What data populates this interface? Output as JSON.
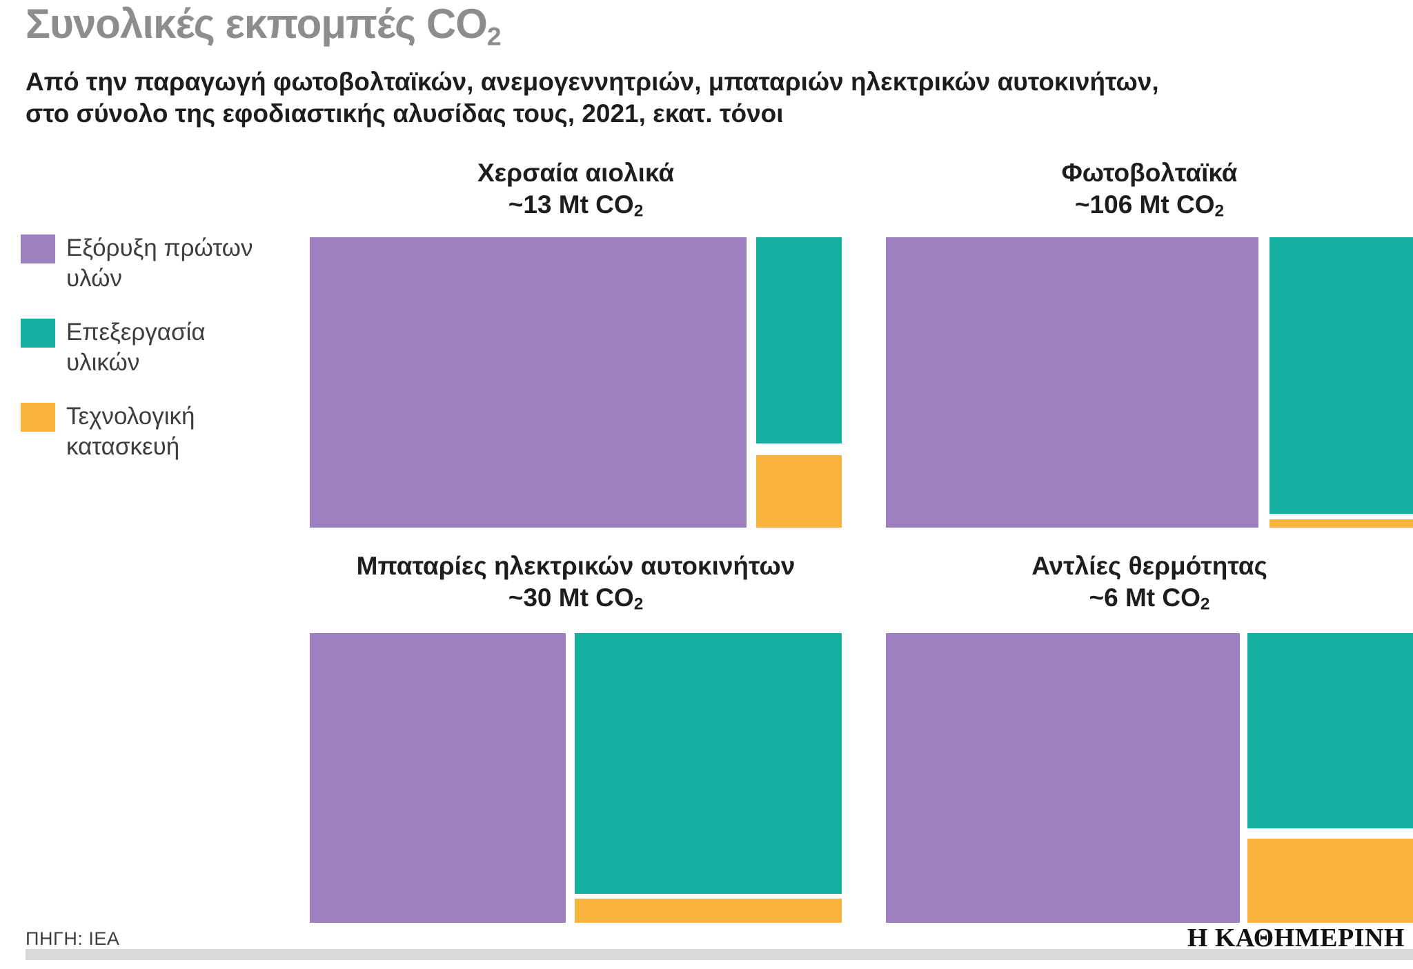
{
  "title": {
    "main": "Συνολικές εκπομπές CO",
    "sub": "2"
  },
  "subtitle": {
    "line1": "Από την παραγωγή φωτοβολταϊκών, ανεμογεννητριών, μπαταριών ηλεκτρικών αυτοκινήτων,",
    "line2": "στο σύνολο της εφοδιαστικής αλυσίδας τους, 2021, εκατ. τόνοι"
  },
  "colors": {
    "purple": "#9c7fbe",
    "teal": "#13b0a2",
    "orange": "#f9b43f",
    "title_gray": "#8d8d8d",
    "text_dark": "#1d1d1b",
    "footer_bar": "#d9d9d9"
  },
  "legend": {
    "items": [
      {
        "label": "Εξόρυξη πρώτων υλών",
        "color": "purple"
      },
      {
        "label": "Επεξεργασία υλικών",
        "color": "teal"
      },
      {
        "label": "Τεχνολογική κατασκευή",
        "color": "orange"
      }
    ]
  },
  "panels": [
    {
      "title": "Χερσαία αιολικά",
      "value_main": "~13 Mt CO",
      "value_sub": "2"
    },
    {
      "title": "Φωτοβολταϊκά",
      "value_main": "~106 Mt CO",
      "value_sub": "2"
    },
    {
      "title": "Μπαταρίες ηλεκτρικών αυτοκινήτων",
      "value_main": "~30 Mt CO",
      "value_sub": "2"
    },
    {
      "title": "Αντλίες θερμότητας",
      "value_main": "~6 Mt CO",
      "value_sub": "2"
    }
  ],
  "footer": {
    "source": "ΠΗΓΗ: ΙΕΑ",
    "logo": "Η ΚΑΘΗΜΕΡΙΝΗ"
  },
  "chart_data": [
    {
      "type": "treemap",
      "title": "Χερσαία αιολικά",
      "total_label": "~13 Mt CO₂",
      "total_mt": 13,
      "unit": "Mt CO₂",
      "year": 2021,
      "legend_position": "left",
      "segments": [
        {
          "name": "Εξόρυξη πρώτων υλών",
          "color": "purple",
          "share_pct": 84,
          "est_mt": 10.9
        },
        {
          "name": "Επεξεργασία υλικών",
          "color": "teal",
          "share_pct": 12,
          "est_mt": 1.6
        },
        {
          "name": "Τεχνολογική κατασκευή",
          "color": "orange",
          "share_pct": 4,
          "est_mt": 0.5
        }
      ]
    },
    {
      "type": "treemap",
      "title": "Φωτοβολταϊκά",
      "total_label": "~106 Mt CO₂",
      "total_mt": 106,
      "unit": "Mt CO₂",
      "year": 2021,
      "segments": [
        {
          "name": "Εξόρυξη πρώτων υλών",
          "color": "purple",
          "share_pct": 73,
          "est_mt": 77
        },
        {
          "name": "Επεξεργασία υλικών",
          "color": "teal",
          "share_pct": 26,
          "est_mt": 28
        },
        {
          "name": "Τεχνολογική κατασκευή",
          "color": "orange",
          "share_pct": 1,
          "est_mt": 1
        }
      ]
    },
    {
      "type": "treemap",
      "title": "Μπαταρίες ηλεκτρικών αυτοκινήτων",
      "total_label": "~30 Mt CO₂",
      "total_mt": 30,
      "unit": "Mt CO₂",
      "year": 2021,
      "segments": [
        {
          "name": "Εξόρυξη πρώτων υλών",
          "color": "purple",
          "share_pct": 49,
          "est_mt": 14.7
        },
        {
          "name": "Επεξεργασία υλικών",
          "color": "teal",
          "share_pct": 47,
          "est_mt": 14.1
        },
        {
          "name": "Τεχνολογική κατασκευή",
          "color": "orange",
          "share_pct": 4,
          "est_mt": 1.2
        }
      ]
    },
    {
      "type": "treemap",
      "title": "Αντλίες θερμότητας",
      "total_label": "~6 Mt CO₂",
      "total_mt": 6,
      "unit": "Mt CO₂",
      "year": 2021,
      "segments": [
        {
          "name": "Εξόρυξη πρώτων υλών",
          "color": "purple",
          "share_pct": 69,
          "est_mt": 4.1
        },
        {
          "name": "Επεξεργασία υλικών",
          "color": "teal",
          "share_pct": 22,
          "est_mt": 1.3
        },
        {
          "name": "Τεχνολογική κατασκευή",
          "color": "orange",
          "share_pct": 9,
          "est_mt": 0.6
        }
      ]
    }
  ]
}
